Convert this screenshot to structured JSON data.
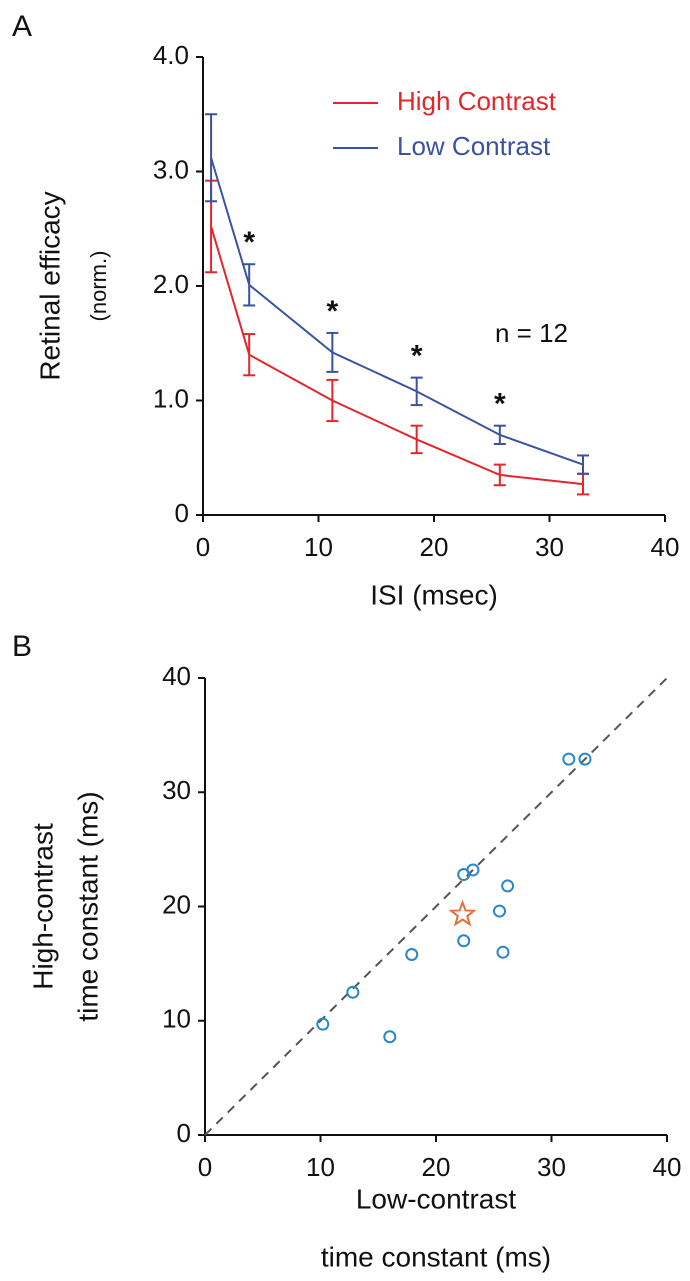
{
  "chart_data": [
    {
      "type": "line",
      "panel_label": "A",
      "ylabel": [
        "Retinal efficacy",
        "(norm.)"
      ],
      "xlabel": "ISI (msec)",
      "x": [
        0.7,
        4,
        11.2,
        18.5,
        25.7,
        32.9
      ],
      "series": [
        {
          "name": "High Contrast",
          "color": "#e3262b",
          "values": [
            2.52,
            1.4,
            1.0,
            0.66,
            0.35,
            0.27
          ],
          "errors": [
            0.4,
            0.18,
            0.18,
            0.12,
            0.09,
            0.09
          ]
        },
        {
          "name": "Low Contrast",
          "color": "#3b52a3",
          "values": [
            3.12,
            2.01,
            1.42,
            1.08,
            0.7,
            0.44
          ],
          "errors": [
            0.38,
            0.18,
            0.17,
            0.12,
            0.08,
            0.08
          ]
        }
      ],
      "significance": [
        null,
        "*",
        "*",
        "*",
        "*",
        null
      ],
      "annotation": "n = 12",
      "xlim": [
        0,
        40
      ],
      "xticks": [
        0,
        10,
        20,
        30,
        40
      ],
      "ylim": [
        0,
        4
      ],
      "yticks": [
        0,
        {
          "value": 1,
          "label": "1.0"
        },
        {
          "value": 2,
          "label": "2.0"
        },
        {
          "value": 3,
          "label": "3.0"
        },
        {
          "value": 4,
          "label": "4.0"
        }
      ],
      "legend": "upper right"
    },
    {
      "type": "scatter",
      "panel_label": "B",
      "ylabel": [
        "High-contrast",
        "time constant (ms)"
      ],
      "xlabel": [
        "Low-contrast",
        "time constant (ms)"
      ],
      "color": "#2a86c6",
      "x": [
        10.2,
        12.8,
        16.0,
        17.9,
        22.4,
        22.4,
        23.2,
        25.5,
        25.8,
        26.2,
        31.5,
        32.9
      ],
      "values": [
        9.7,
        12.5,
        8.6,
        15.8,
        17.0,
        22.8,
        23.2,
        19.6,
        16.0,
        21.8,
        32.9,
        32.9
      ],
      "highlight": {
        "x": 22.3,
        "y": 19.3,
        "color": "#e0703c",
        "marker": "star"
      },
      "identity_line": true,
      "xlim": [
        0,
        40
      ],
      "xticks": [
        0,
        10,
        20,
        30,
        40
      ],
      "ylim": [
        0,
        40
      ],
      "yticks": [
        0,
        10,
        20,
        30,
        40
      ]
    }
  ]
}
